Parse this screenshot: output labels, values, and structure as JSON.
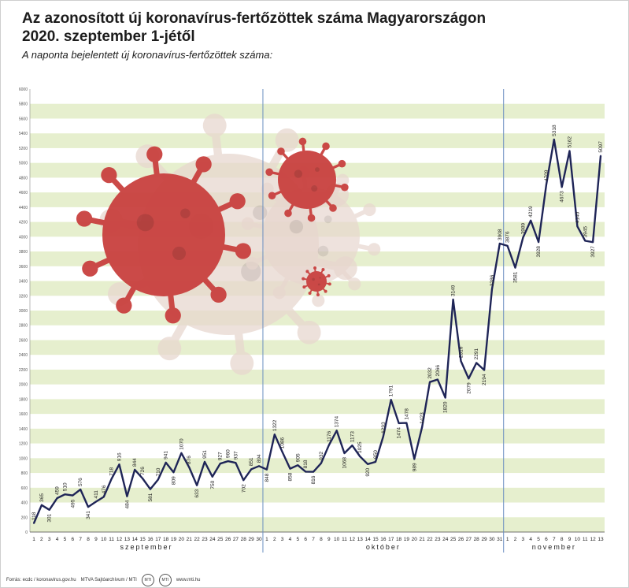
{
  "title_line1": "Az azonosított új koronavírus-fertőzöttek száma Magyarországon",
  "title_line2": "2020. szeptember 1-jétől",
  "subtitle": "A naponta bejelentett új koronavírus-fertőzöttek száma:",
  "footer": {
    "source": "Forrás: ecdc / koronavirus.gov.hu",
    "agency": "MTVA Sajtóarchívum / MTI",
    "logo1": "MTI",
    "logo2": "MTI",
    "site": "www.mti.hu"
  },
  "colors": {
    "line": "#1f2557",
    "grid_band": "#e6efce",
    "month_divider": "#6a8fc0",
    "virus": "#c9413f",
    "virus_faded": "#e8d7cf"
  },
  "chart_data": {
    "type": "line",
    "title": "Az azonosított új koronavírus-fertőzöttek száma Magyarországon 2020. szeptember 1-jétől",
    "subtitle": "A naponta bejelentett új koronavírus-fertőzöttek száma:",
    "ylim": [
      0,
      6000
    ],
    "y_ticks": [
      0,
      200,
      400,
      600,
      800,
      1000,
      1200,
      1400,
      1600,
      1800,
      2000,
      2200,
      2400,
      2600,
      2800,
      3000,
      3200,
      3400,
      3600,
      3800,
      4000,
      4200,
      4400,
      4600,
      4800,
      5000,
      5200,
      5400,
      5600,
      5800,
      6000
    ],
    "grid": true,
    "months": [
      {
        "name": "szeptember",
        "days": [
          "1",
          "2",
          "3",
          "4",
          "5",
          "6",
          "7",
          "8",
          "9",
          "10",
          "11",
          "12",
          "13",
          "14",
          "15",
          "16",
          "17",
          "18",
          "19",
          "20",
          "21",
          "22",
          "23",
          "24",
          "25",
          "26",
          "27",
          "28",
          "29",
          "30"
        ]
      },
      {
        "name": "október",
        "days": [
          "1",
          "2",
          "3",
          "4",
          "5",
          "6",
          "7",
          "8",
          "9",
          "10",
          "11",
          "12",
          "13",
          "14",
          "15",
          "16",
          "17",
          "18",
          "19",
          "20",
          "21",
          "22",
          "23",
          "24",
          "25",
          "26",
          "27",
          "28",
          "29",
          "30",
          "31"
        ]
      },
      {
        "name": "november",
        "days": [
          "1",
          "2",
          "3",
          "4",
          "5",
          "6",
          "7",
          "8",
          "9",
          "10",
          "11",
          "12",
          "13"
        ]
      }
    ],
    "series": [
      {
        "values": [
          118,
          365,
          301,
          459,
          510,
          495,
          576,
          341,
          411,
          476,
          718,
          916,
          484,
          844,
          726,
          581,
          710,
          941,
          809,
          1070,
          876,
          633,
          951,
          750,
          927,
          960,
          937,
          702,
          851,
          894,
          848,
          1322,
          1086,
          858,
          905,
          818,
          816,
          932,
          1176,
          1374,
          1068,
          1173,
          1025,
          920,
          950,
          1293,
          1791,
          1474,
          1478,
          989,
          1423,
          2032,
          2066,
          1820,
          3149,
          2316,
          2079,
          2291,
          2194,
          3286,
          3908,
          3876,
          3581,
          3989,
          4219,
          3928,
          4709,
          5318,
          4673,
          5162,
          4140,
          3945,
          3927,
          5097
        ]
      }
    ]
  }
}
